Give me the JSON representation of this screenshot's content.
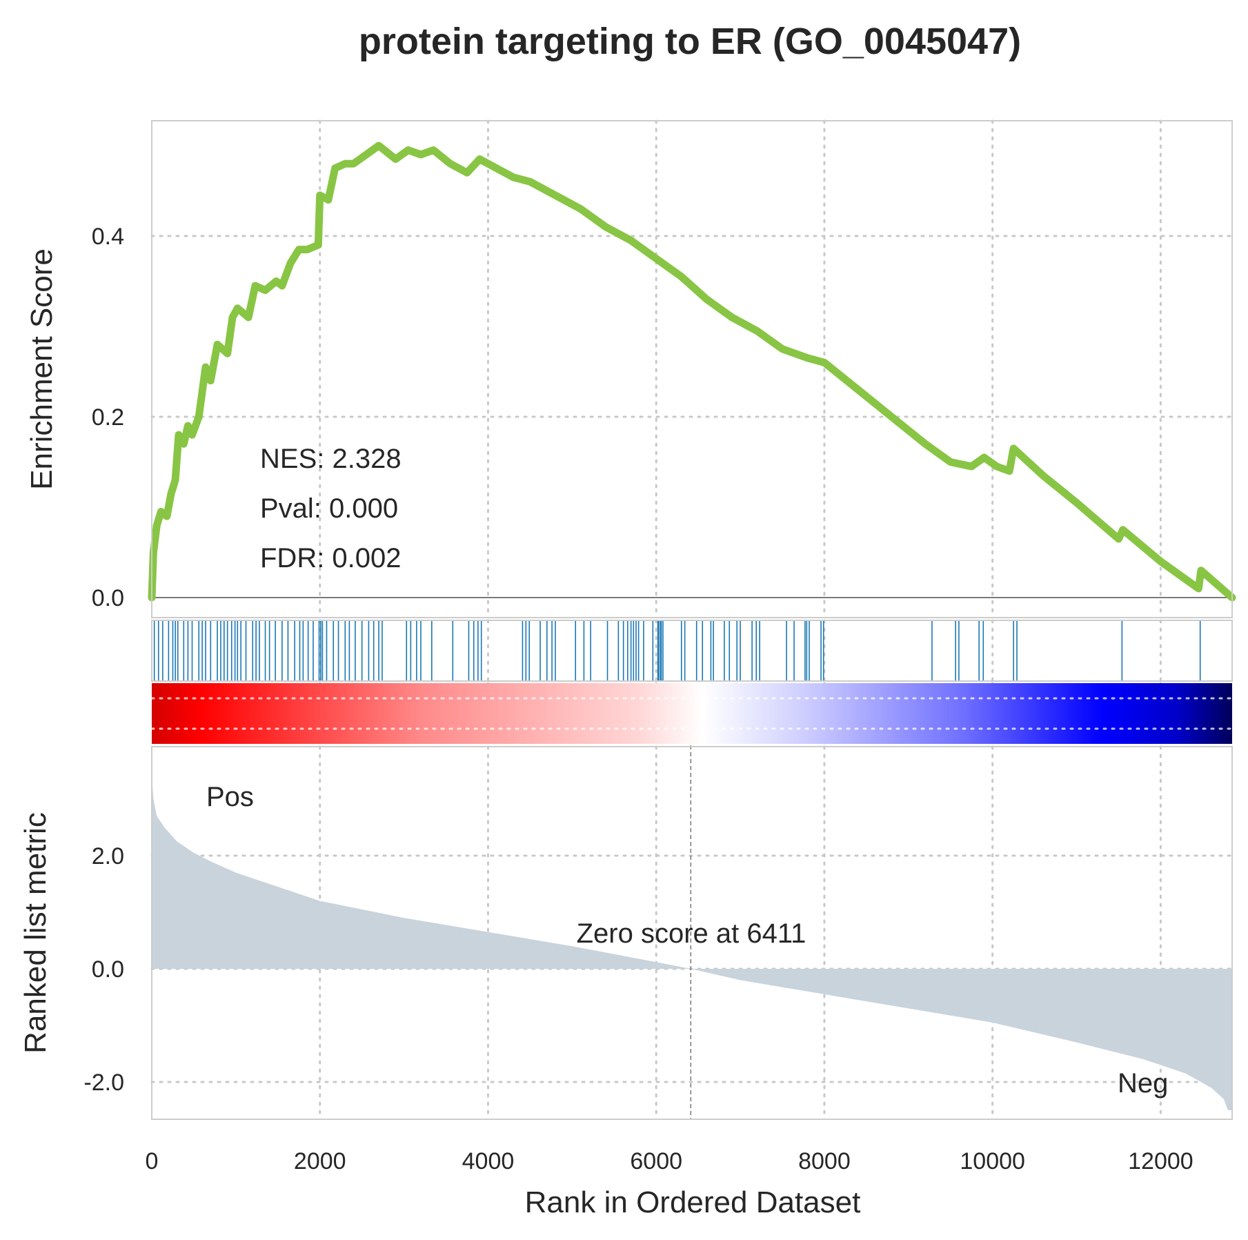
{
  "chart_data": {
    "type": "line",
    "title": "protein targeting to ER (GO_0045047)",
    "xlabel": "Rank in Ordered Dataset",
    "ylabel_top": "Enrichment Score",
    "ylabel_bottom": "Ranked list metric",
    "x_ticks": [
      "0",
      "2000",
      "4000",
      "6000",
      "8000",
      "10000",
      "12000"
    ],
    "es_y_ticks": [
      "0.0",
      "0.2",
      "0.4"
    ],
    "metric_y_ticks": [
      "-2.0",
      "0.0",
      "2.0"
    ],
    "xlim": [
      0,
      12850
    ],
    "es_ylim": [
      0,
      0.52
    ],
    "metric_ylim": [
      -2.7,
      3.7
    ],
    "stats": {
      "nes": "NES: 2.328",
      "pval": "Pval: 0.000",
      "fdr": "FDR: 0.002"
    },
    "pos_label": "Pos",
    "neg_label": "Neg",
    "zero_score_label": "Zero score at 6411",
    "zero_score_rank": 6411,
    "grid": true,
    "colors": {
      "es_line": "#88c544",
      "hits": "#1a78b4",
      "metric_fill": "#c9d3dc",
      "pos": "#ff0000",
      "neg": "#0000ff"
    },
    "enrichment_curve": [
      [
        0,
        0.0
      ],
      [
        20,
        0.05
      ],
      [
        60,
        0.08
      ],
      [
        110,
        0.095
      ],
      [
        180,
        0.09
      ],
      [
        230,
        0.115
      ],
      [
        280,
        0.13
      ],
      [
        320,
        0.18
      ],
      [
        380,
        0.17
      ],
      [
        430,
        0.19
      ],
      [
        480,
        0.18
      ],
      [
        560,
        0.2
      ],
      [
        640,
        0.255
      ],
      [
        700,
        0.24
      ],
      [
        780,
        0.28
      ],
      [
        900,
        0.27
      ],
      [
        960,
        0.31
      ],
      [
        1020,
        0.32
      ],
      [
        1150,
        0.31
      ],
      [
        1230,
        0.345
      ],
      [
        1350,
        0.34
      ],
      [
        1480,
        0.35
      ],
      [
        1550,
        0.345
      ],
      [
        1650,
        0.37
      ],
      [
        1750,
        0.385
      ],
      [
        1850,
        0.385
      ],
      [
        1980,
        0.39
      ],
      [
        2000,
        0.445
      ],
      [
        2100,
        0.44
      ],
      [
        2180,
        0.475
      ],
      [
        2300,
        0.48
      ],
      [
        2400,
        0.48
      ],
      [
        2550,
        0.49
      ],
      [
        2700,
        0.5
      ],
      [
        2900,
        0.485
      ],
      [
        3050,
        0.495
      ],
      [
        3200,
        0.49
      ],
      [
        3350,
        0.495
      ],
      [
        3550,
        0.48
      ],
      [
        3750,
        0.47
      ],
      [
        3900,
        0.485
      ],
      [
        4100,
        0.475
      ],
      [
        4300,
        0.465
      ],
      [
        4500,
        0.46
      ],
      [
        4700,
        0.45
      ],
      [
        4900,
        0.44
      ],
      [
        5100,
        0.43
      ],
      [
        5400,
        0.41
      ],
      [
        5700,
        0.395
      ],
      [
        6000,
        0.375
      ],
      [
        6300,
        0.355
      ],
      [
        6600,
        0.33
      ],
      [
        6900,
        0.31
      ],
      [
        7200,
        0.295
      ],
      [
        7500,
        0.275
      ],
      [
        7800,
        0.265
      ],
      [
        8000,
        0.26
      ],
      [
        8400,
        0.23
      ],
      [
        8800,
        0.2
      ],
      [
        9200,
        0.17
      ],
      [
        9500,
        0.15
      ],
      [
        9750,
        0.145
      ],
      [
        9900,
        0.155
      ],
      [
        10050,
        0.145
      ],
      [
        10200,
        0.14
      ],
      [
        10250,
        0.165
      ],
      [
        10600,
        0.135
      ],
      [
        11000,
        0.105
      ],
      [
        11500,
        0.065
      ],
      [
        11550,
        0.075
      ],
      [
        12000,
        0.04
      ],
      [
        12450,
        0.01
      ],
      [
        12480,
        0.03
      ],
      [
        12850,
        0.0
      ]
    ],
    "hit_ranks": [
      30,
      80,
      130,
      200,
      250,
      280,
      310,
      380,
      430,
      480,
      560,
      600,
      640,
      700,
      780,
      820,
      860,
      900,
      950,
      990,
      1020,
      1060,
      1120,
      1200,
      1240,
      1280,
      1350,
      1400,
      1470,
      1550,
      1620,
      1700,
      1760,
      1800,
      1860,
      1920,
      1990,
      2010,
      2030,
      2080,
      2160,
      2220,
      2300,
      2350,
      2420,
      2500,
      2580,
      2640,
      2700,
      2740,
      3030,
      3080,
      3150,
      3200,
      3330,
      3580,
      3770,
      3830,
      3880,
      3920,
      4410,
      4450,
      4490,
      4620,
      4700,
      4760,
      4800,
      5040,
      5140,
      5220,
      5420,
      5550,
      5610,
      5660,
      5700,
      5730,
      5760,
      5790,
      5850,
      5960,
      6020,
      6030,
      6050,
      6060,
      6080,
      6300,
      6340,
      6480,
      6550,
      6650,
      6680,
      6810,
      6870,
      6960,
      7000,
      7140,
      7190,
      7230,
      7550,
      7640,
      7770,
      7790,
      7820,
      7960,
      7990,
      9280,
      9560,
      9600,
      9840,
      9890,
      10250,
      10290,
      11540,
      12470
    ],
    "metric_curve": [
      [
        0,
        3.4
      ],
      [
        20,
        3.0
      ],
      [
        60,
        2.7
      ],
      [
        150,
        2.5
      ],
      [
        300,
        2.25
      ],
      [
        500,
        2.05
      ],
      [
        700,
        1.9
      ],
      [
        1000,
        1.7
      ],
      [
        1500,
        1.45
      ],
      [
        2000,
        1.2
      ],
      [
        3000,
        0.9
      ],
      [
        4000,
        0.65
      ],
      [
        5000,
        0.4
      ],
      [
        6000,
        0.12
      ],
      [
        6411,
        0.0
      ],
      [
        7000,
        -0.2
      ],
      [
        8000,
        -0.45
      ],
      [
        9000,
        -0.7
      ],
      [
        10000,
        -0.95
      ],
      [
        11000,
        -1.3
      ],
      [
        11800,
        -1.6
      ],
      [
        12300,
        -1.85
      ],
      [
        12600,
        -2.1
      ],
      [
        12750,
        -2.3
      ],
      [
        12800,
        -2.5
      ],
      [
        12850,
        -2.5
      ]
    ]
  }
}
